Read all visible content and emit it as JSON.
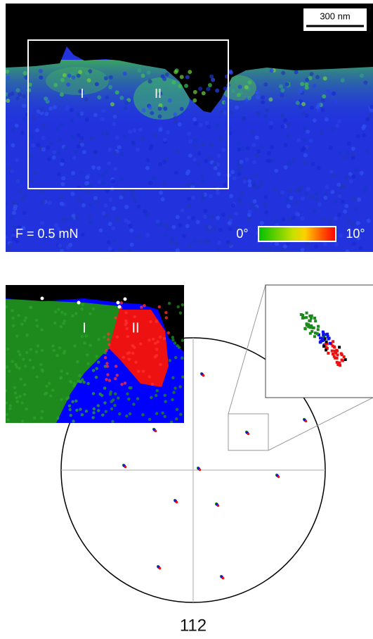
{
  "top_map": {
    "scale_bar": "300 nm",
    "regions": [
      "I",
      "II"
    ],
    "force_label": "F = 0.5 mN",
    "colorbar": {
      "min_label": "0°",
      "max_label": "10°"
    }
  },
  "inset_map": {
    "regions": [
      "I",
      "II"
    ]
  },
  "pole_figure": {
    "label": "112"
  }
}
